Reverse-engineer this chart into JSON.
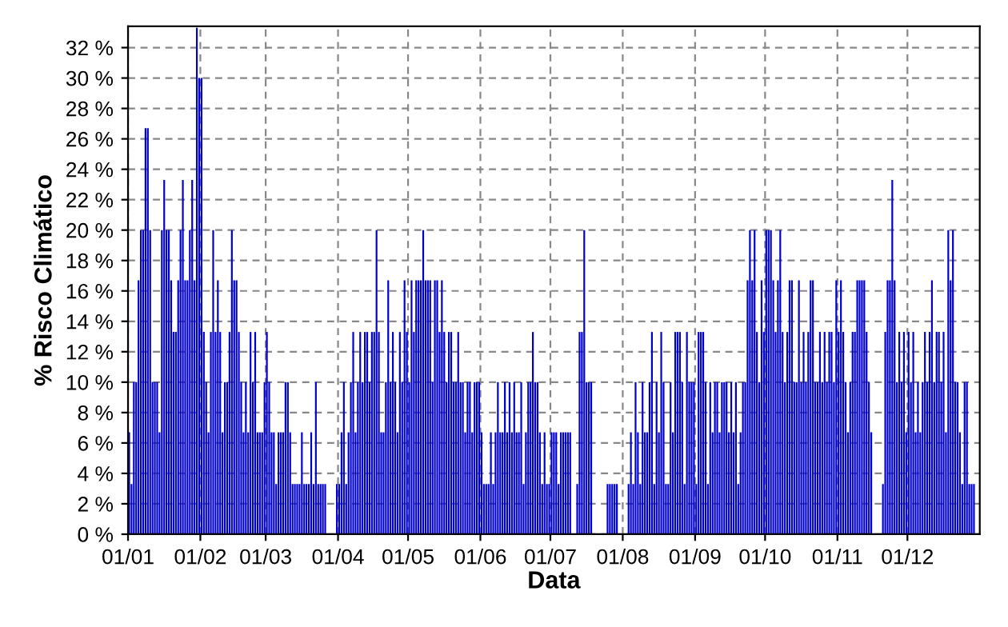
{
  "chart_data": {
    "type": "bar",
    "xlabel": "Data",
    "ylabel": "% Risco Climático",
    "categories": [
      "01/01",
      null,
      null,
      null,
      null,
      null,
      null,
      null,
      null,
      null,
      null,
      null,
      null,
      null,
      null,
      null,
      null,
      null,
      null,
      null,
      null,
      null,
      null,
      null,
      null,
      null,
      null,
      null,
      null,
      null,
      null,
      "01/02",
      null,
      null,
      null,
      null,
      null,
      null,
      null,
      null,
      null,
      null,
      null,
      null,
      null,
      null,
      null,
      null,
      null,
      null,
      null,
      null,
      null,
      null,
      null,
      null,
      null,
      null,
      null,
      "01/03",
      null,
      null,
      null,
      null,
      null,
      null,
      null,
      null,
      null,
      null,
      null,
      null,
      null,
      null,
      null,
      null,
      null,
      null,
      null,
      null,
      null,
      null,
      null,
      null,
      null,
      null,
      null,
      null,
      null,
      null,
      "01/04",
      null,
      null,
      null,
      null,
      null,
      null,
      null,
      null,
      null,
      null,
      null,
      null,
      null,
      null,
      null,
      null,
      null,
      null,
      null,
      null,
      null,
      null,
      null,
      null,
      null,
      null,
      null,
      null,
      null,
      "01/05",
      null,
      null,
      null,
      null,
      null,
      null,
      null,
      null,
      null,
      null,
      null,
      null,
      null,
      null,
      null,
      null,
      null,
      null,
      null,
      null,
      null,
      null,
      null,
      null,
      null,
      null,
      null,
      null,
      null,
      null,
      "01/06",
      null,
      null,
      null,
      null,
      null,
      null,
      null,
      null,
      null,
      null,
      null,
      null,
      null,
      null,
      null,
      null,
      null,
      null,
      null,
      null,
      null,
      null,
      null,
      null,
      null,
      null,
      null,
      null,
      null,
      "01/07",
      null,
      null,
      null,
      null,
      null,
      null,
      null,
      null,
      null,
      null,
      null,
      null,
      null,
      null,
      null,
      null,
      null,
      null,
      null,
      null,
      null,
      null,
      null,
      null,
      null,
      null,
      null,
      null,
      null,
      null,
      "01/08",
      null,
      null,
      null,
      null,
      null,
      null,
      null,
      null,
      null,
      null,
      null,
      null,
      null,
      null,
      null,
      null,
      null,
      null,
      null,
      null,
      null,
      null,
      null,
      null,
      null,
      null,
      null,
      null,
      null,
      null,
      "01/09",
      null,
      null,
      null,
      null,
      null,
      null,
      null,
      null,
      null,
      null,
      null,
      null,
      null,
      null,
      null,
      null,
      null,
      null,
      null,
      null,
      null,
      null,
      null,
      null,
      null,
      null,
      null,
      null,
      null,
      "01/10",
      null,
      null,
      null,
      null,
      null,
      null,
      null,
      null,
      null,
      null,
      null,
      null,
      null,
      null,
      null,
      null,
      null,
      null,
      null,
      null,
      null,
      null,
      null,
      null,
      null,
      null,
      null,
      null,
      null,
      null,
      "01/11",
      null,
      null,
      null,
      null,
      null,
      null,
      null,
      null,
      null,
      null,
      null,
      null,
      null,
      null,
      null,
      null,
      null,
      null,
      null,
      null,
      null,
      null,
      null,
      null,
      null,
      null,
      null,
      null,
      null,
      "01/12",
      null,
      null,
      null,
      null,
      null,
      null,
      null,
      null,
      null,
      null,
      null,
      null,
      null,
      null,
      null,
      null,
      null,
      null,
      null,
      null,
      null,
      null,
      null,
      null,
      null,
      null,
      null,
      null,
      null,
      null
    ],
    "values": [
      6.7,
      3.3,
      10,
      10,
      16.7,
      20,
      20,
      26.7,
      26.7,
      20,
      10,
      10,
      10,
      6.7,
      20,
      23.3,
      20,
      20,
      16.7,
      13.3,
      13.3,
      16.7,
      20,
      23.3,
      16.7,
      16.7,
      20,
      23.3,
      16.7,
      33.3,
      30,
      30,
      13.3,
      10,
      6.7,
      13.3,
      20,
      13.3,
      16.7,
      13.3,
      6.7,
      10,
      10,
      13.3,
      20,
      16.7,
      16.7,
      13.3,
      10,
      6.7,
      10,
      6.7,
      13.3,
      10,
      13.3,
      6.7,
      6.7,
      6.7,
      10,
      13.3,
      10,
      6.7,
      6.7,
      3.3,
      6.7,
      6.7,
      6.7,
      10,
      10,
      6.7,
      3.3,
      3.3,
      3.3,
      3.3,
      6.7,
      3.3,
      3.3,
      3.3,
      6.7,
      3.3,
      10,
      3.3,
      3.3,
      3.3,
      3.3,
      0,
      0,
      0,
      0,
      3.3,
      3.3,
      6.7,
      10,
      3.3,
      6.7,
      10,
      13.3,
      6.7,
      10,
      13.3,
      10,
      13.3,
      13.3,
      10,
      13.3,
      13.3,
      20,
      13.3,
      6.7,
      6.7,
      10,
      16.7,
      10,
      13.3,
      10,
      6.7,
      13.3,
      10,
      16.7,
      13.3,
      10,
      16.7,
      13.3,
      16.7,
      16.7,
      16.7,
      20,
      16.7,
      16.7,
      16.7,
      10,
      16.7,
      16.7,
      13.3,
      16.7,
      13.3,
      10,
      13.3,
      13.3,
      10,
      10,
      13.3,
      10,
      10,
      6.7,
      10,
      10,
      6.7,
      10,
      10,
      10,
      6.7,
      3.3,
      3.3,
      3.3,
      6.7,
      3.3,
      6.7,
      10,
      6.7,
      6.7,
      10,
      6.7,
      10,
      6.7,
      10,
      6.7,
      6.7,
      10,
      3.3,
      6.7,
      10,
      10,
      13.3,
      10,
      10,
      6.7,
      3.3,
      6.7,
      3.3,
      3.3,
      6.7,
      6.7,
      6.7,
      3.3,
      6.7,
      6.7,
      6.7,
      6.7,
      6.7,
      0,
      0,
      3.3,
      13.3,
      13.3,
      20,
      10,
      10,
      10,
      0,
      0,
      0,
      0,
      0,
      0,
      3.3,
      3.3,
      3.3,
      3.3,
      3.3,
      0,
      0,
      0,
      0,
      3.3,
      6.7,
      3.3,
      10,
      6.7,
      3.3,
      10,
      6.7,
      6.7,
      10,
      13.3,
      3.3,
      10,
      6.7,
      13.3,
      10,
      3.3,
      3.3,
      10,
      6.7,
      13.3,
      13.3,
      13.3,
      10,
      3.3,
      13.3,
      10,
      10,
      10,
      3.3,
      13.3,
      13.3,
      13.3,
      10,
      3.3,
      10,
      6.7,
      10,
      10,
      6.7,
      10,
      10,
      10,
      6.7,
      10,
      6.7,
      10,
      3.3,
      6.7,
      10,
      10,
      16.7,
      20,
      16.7,
      20,
      13.3,
      10,
      16.7,
      13.3,
      20,
      20,
      20,
      16.7,
      13.3,
      16.7,
      20,
      13.3,
      10,
      13.3,
      16.7,
      16.7,
      10,
      10,
      16.7,
      10,
      13.3,
      10,
      13.3,
      16.7,
      16.7,
      10,
      10,
      13.3,
      10,
      13.3,
      10,
      13.3,
      13.3,
      10,
      16.7,
      13.3,
      16.7,
      13.3,
      10,
      6.7,
      10,
      13.3,
      13.3,
      16.7,
      16.7,
      16.7,
      16.7,
      13.3,
      10,
      6.7,
      0,
      0,
      0,
      0,
      3.3,
      13.3,
      16.7,
      16.7,
      23.3,
      16.7,
      10,
      13.3,
      10,
      13.3,
      6.7,
      13.3,
      10,
      13.3,
      6.7,
      10,
      6.7,
      10,
      13.3,
      10,
      13.3,
      16.7,
      10,
      13.3,
      13.3,
      10,
      13.3,
      6.7,
      20,
      16.7,
      20,
      10,
      10,
      6.7,
      3.3,
      10,
      10,
      3.3,
      3.3,
      3.3,
      0,
      0
    ],
    "color": "#0000cc",
    "ylim": [
      0,
      33.4
    ],
    "yticks": [
      {
        "value": 0,
        "label": "0 %"
      },
      {
        "value": 2,
        "label": "2 %"
      },
      {
        "value": 4,
        "label": "4 %"
      },
      {
        "value": 6,
        "label": "6 %"
      },
      {
        "value": 8,
        "label": "8 %"
      },
      {
        "value": 10,
        "label": "10 %"
      },
      {
        "value": 12,
        "label": "12 %"
      },
      {
        "value": 14,
        "label": "14 %"
      },
      {
        "value": 16,
        "label": "16 %"
      },
      {
        "value": 18,
        "label": "18 %"
      },
      {
        "value": 20,
        "label": "20 %"
      },
      {
        "value": 22,
        "label": "22 %"
      },
      {
        "value": 24,
        "label": "24 %"
      },
      {
        "value": 26,
        "label": "26 %"
      },
      {
        "value": 28,
        "label": "28 %"
      },
      {
        "value": 30,
        "label": "30 %"
      },
      {
        "value": 32,
        "label": "32 %"
      }
    ],
    "grid": true
  }
}
